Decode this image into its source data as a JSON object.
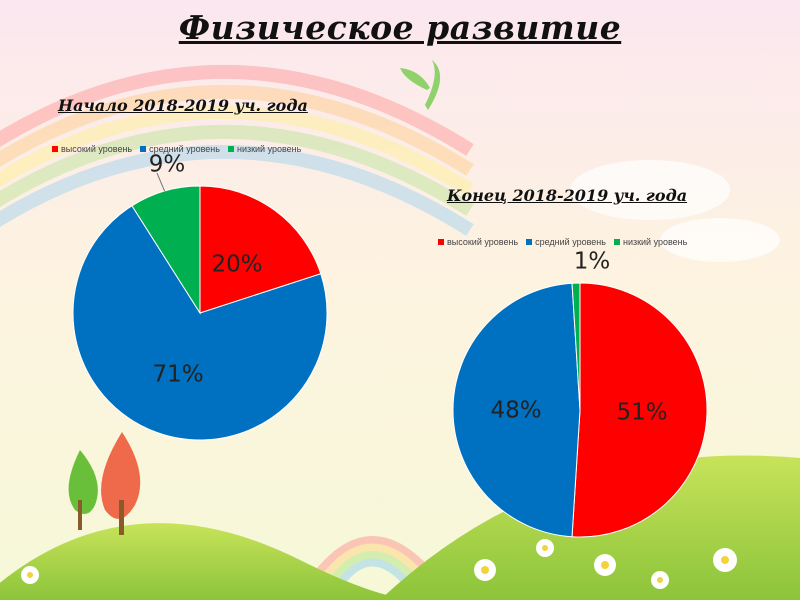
{
  "page": {
    "title": "Физическое развитие"
  },
  "colors": {
    "high": "#FF0000",
    "medium": "#0070C0",
    "low": "#00B050"
  },
  "chart_data": [
    {
      "type": "pie",
      "title": "Начало 2018-2019 уч. года",
      "categories": [
        "высокий уровень",
        "средний уровень",
        "низкий уровень"
      ],
      "values": [
        20,
        71,
        9
      ],
      "data_labels": [
        "20%",
        "71%",
        "9%"
      ],
      "legend": "top"
    },
    {
      "type": "pie",
      "title": "Конец 2018-2019 уч. года",
      "categories": [
        "высокий уровень",
        "средний уровень",
        "низкий уровень"
      ],
      "values": [
        51,
        48,
        1
      ],
      "data_labels": [
        "51%",
        "48%",
        "1%"
      ],
      "legend": "top"
    }
  ]
}
